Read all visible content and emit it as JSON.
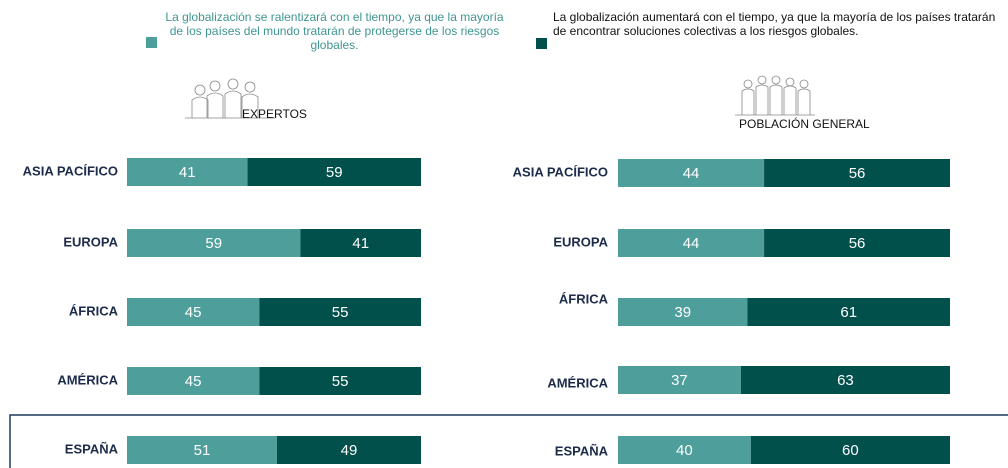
{
  "chart_data": [
    {
      "type": "bar",
      "orientation": "horizontal",
      "stacked": true,
      "title": "EXPERTOS",
      "categories": [
        "ASIA PACÍFICO",
        "EUROPA",
        "ÁFRICA",
        "AMÉRICA",
        "ESPAÑA"
      ],
      "series": [
        {
          "name": "La globalización se ralentizará con el tiempo, ya que la mayoría de los países del mundo tratarán de protegerse de los riesgos globales.",
          "color": "#4e9f9c",
          "values": [
            41,
            59,
            45,
            45,
            51
          ]
        },
        {
          "name": "La globalización aumentará con el tiempo, ya que la mayoría de los países tratarán de encontrar soluciones colectivas a los riesgos globales.",
          "color": "#02504c",
          "values": [
            59,
            41,
            55,
            55,
            49
          ]
        }
      ]
    },
    {
      "type": "bar",
      "orientation": "horizontal",
      "stacked": true,
      "title": "POBLACIÓN GENERAL",
      "categories": [
        "ASIA PACÍFICO",
        "EUROPA",
        "ÁFRICA",
        "AMÉRICA",
        "ESPAÑA"
      ],
      "series": [
        {
          "color": "#4e9f9c",
          "values": [
            44,
            44,
            39,
            37,
            40
          ]
        },
        {
          "color": "#02504c",
          "values": [
            56,
            56,
            61,
            63,
            60
          ]
        }
      ]
    }
  ]
}
